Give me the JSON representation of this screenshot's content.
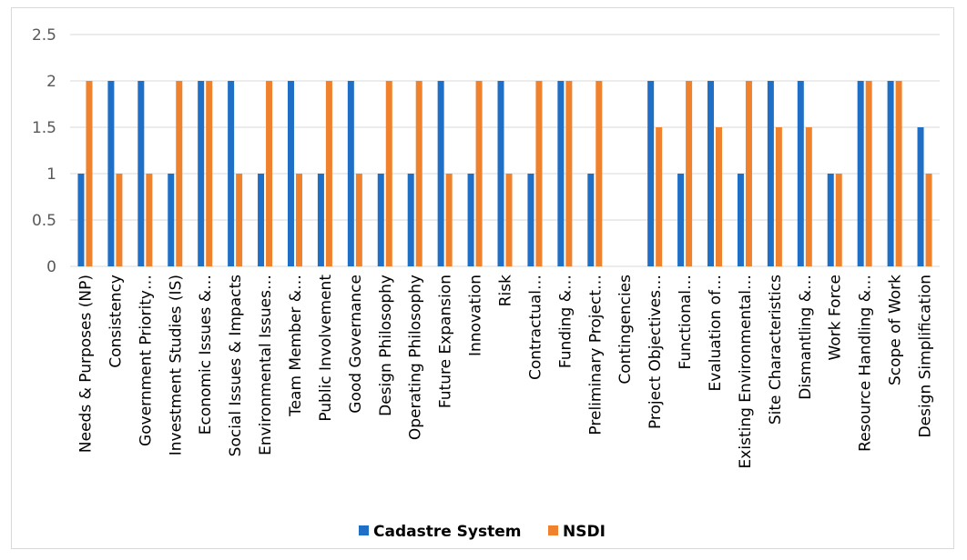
{
  "chart_data": {
    "type": "bar",
    "title": "",
    "xlabel": "",
    "ylabel": "",
    "ylim": [
      0,
      2.5
    ],
    "yticks": [
      "0",
      "0.5",
      "1",
      "1.5",
      "2",
      "2.5"
    ],
    "grid": true,
    "legend_position": "bottom",
    "categories": [
      "Needs & Purposes (NP)",
      "Consistency",
      "Government Priority…",
      "Investment Studies (IS)",
      "Economic Issues &…",
      "Social Issues & Impacts",
      "Environmental Issues…",
      "Team Member &…",
      "Public Involvement",
      "Good Governance",
      "Design Philosophy",
      "Operating Philosophy",
      "Future Expansion",
      "Innovation",
      "Risk",
      "Contractual…",
      "Funding &…",
      "Preliminary Project…",
      "Contingencies",
      "Project Objectives…",
      "Functional…",
      "Evaluation of…",
      "Existing Environmental…",
      "Site Characteristics",
      "Dismantling &…",
      "Work Force",
      "Resource Handling &…",
      "Scope of Work",
      "Design Simplification"
    ],
    "series": [
      {
        "name": "Cadastre System",
        "color": "#1f6fc6",
        "values": [
          1,
          2,
          2,
          1,
          2,
          2,
          1,
          2,
          1,
          2,
          1,
          1,
          2,
          1,
          2,
          1,
          2,
          1,
          0,
          2,
          1,
          2,
          1,
          2,
          2,
          1,
          2,
          2,
          1.5
        ]
      },
      {
        "name": "NSDI",
        "color": "#f0822d",
        "values": [
          2,
          1,
          1,
          2,
          2,
          1,
          2,
          1,
          2,
          1,
          2,
          2,
          1,
          2,
          1,
          2,
          2,
          2,
          0,
          1.5,
          2,
          1.5,
          2,
          1.5,
          1.5,
          1,
          2,
          2,
          1
        ]
      }
    ]
  }
}
